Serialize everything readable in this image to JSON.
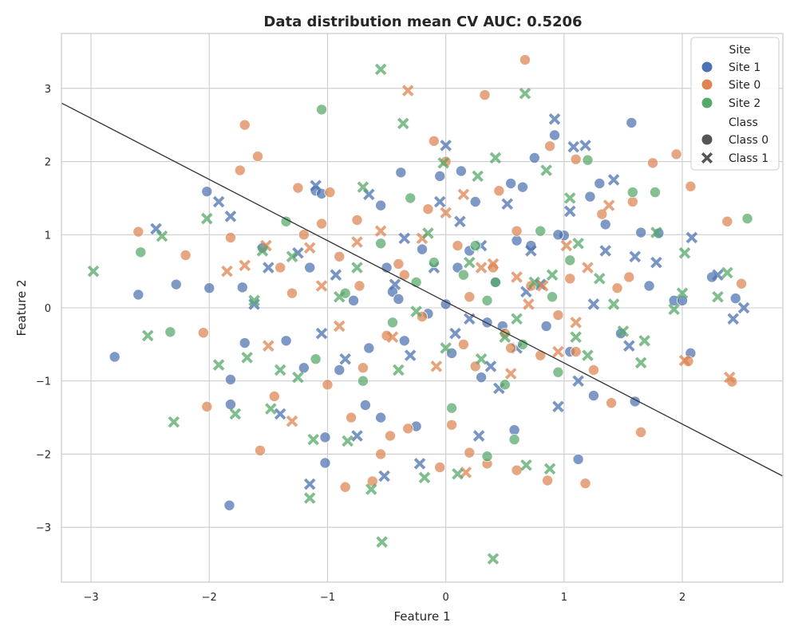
{
  "chart_data": {
    "type": "scatter",
    "title": "Data distribution mean CV AUC: 0.5206",
    "xlabel": "Feature 1",
    "ylabel": "Feature 2",
    "xlim": [
      -3.25,
      2.85
    ],
    "ylim": [
      -3.75,
      3.75
    ],
    "xticks": [
      -3,
      -2,
      -1,
      0,
      1,
      2
    ],
    "yticks": [
      -3,
      -2,
      -1,
      0,
      1,
      2,
      3
    ],
    "xtick_labels": [
      "−3",
      "−2",
      "−1",
      "0",
      "1",
      "2"
    ],
    "ytick_labels": [
      "−3",
      "−2",
      "−1",
      "0",
      "1",
      "2",
      "3"
    ],
    "grid": true,
    "legend_position": "top-right",
    "legend": {
      "hue_title": "Site",
      "style_title": "Class",
      "hue_entries": [
        "Site 1",
        "Site 0",
        "Site 2"
      ],
      "style_entries": [
        "Class 0",
        "Class 1"
      ]
    },
    "colors": {
      "Site 1": "#4c72b0",
      "Site 0": "#dd8452",
      "Site 2": "#55a868",
      "neutral": "#555555",
      "line": "#333333"
    },
    "decision_boundary": {
      "x": [
        -3.25,
        2.85
      ],
      "y": [
        2.8,
        -2.3
      ]
    },
    "series": [
      {
        "site": "Site 1",
        "class": "Class 0",
        "x": [
          -2.8,
          -2.6,
          -2.28,
          -2.02,
          -2.0,
          -1.82,
          -1.82,
          -1.83,
          -1.72,
          -1.1,
          -1.05,
          -1.02,
          -1.02,
          -0.38,
          -0.55,
          -0.05,
          -0.55,
          0.13,
          0.55,
          0.65,
          0.75,
          0.92,
          1.0,
          1.3,
          1.22,
          1.25,
          1.57,
          1.65,
          1.72,
          1.93,
          2.0,
          2.07,
          2.25,
          2.45,
          -1.15,
          -0.78,
          -0.5,
          -0.2,
          0.35,
          0.05,
          -0.35,
          0.42,
          0.2,
          -0.65,
          0.58,
          1.12,
          -1.7,
          -0.9,
          -0.15,
          0.6,
          1.35,
          0.85,
          -0.45,
          0.1,
          -1.35,
          0.95,
          1.48,
          0.3,
          -0.25,
          -0.68,
          0.72,
          1.05,
          1.8,
          -1.55,
          0.0,
          1.6,
          -0.4,
          -1.2,
          0.25,
          0.48
        ],
        "y": [
          -0.67,
          0.18,
          0.32,
          1.59,
          0.27,
          -0.98,
          -1.32,
          -2.7,
          0.28,
          1.6,
          1.56,
          -2.12,
          -1.77,
          1.85,
          1.4,
          1.8,
          -1.5,
          1.87,
          1.7,
          1.65,
          2.05,
          2.36,
          0.99,
          1.7,
          1.52,
          -1.2,
          2.53,
          1.03,
          0.3,
          0.1,
          0.1,
          -0.62,
          0.42,
          0.13,
          0.55,
          0.1,
          0.55,
          0.8,
          -0.2,
          -0.62,
          -0.45,
          0.35,
          0.78,
          -0.55,
          -1.67,
          -2.07,
          -0.48,
          -0.85,
          -0.08,
          0.92,
          1.14,
          -0.25,
          0.22,
          0.55,
          -0.45,
          1.0,
          -0.35,
          -0.95,
          -1.62,
          -1.33,
          0.85,
          -0.6,
          1.02,
          0.82,
          0.05,
          -1.28,
          0.12,
          -0.82,
          1.45,
          -0.25
        ]
      },
      {
        "site": "Site 1",
        "class": "Class 1",
        "x": [
          -2.45,
          -1.92,
          -1.82,
          -1.62,
          -1.4,
          -1.25,
          -1.1,
          -0.93,
          -0.75,
          -0.52,
          -0.43,
          -0.22,
          -0.0,
          0.08,
          0.28,
          0.52,
          0.72,
          0.92,
          1.08,
          1.18,
          1.25,
          1.42,
          1.6,
          1.78,
          2.08,
          2.3,
          2.43,
          2.52,
          -1.15,
          -0.3,
          0.2,
          0.6,
          1.05,
          1.35,
          -0.65,
          0.38,
          -0.1,
          0.8,
          -0.85,
          1.55,
          -1.5,
          0.12,
          0.45,
          -0.05,
          0.95,
          1.12,
          -0.35,
          0.68,
          -1.05,
          0.3
        ],
        "y": [
          1.08,
          1.45,
          1.25,
          0.05,
          -1.45,
          0.75,
          1.67,
          0.45,
          -1.75,
          -2.3,
          0.32,
          -2.13,
          2.22,
          -0.35,
          -1.75,
          1.42,
          0.78,
          2.58,
          2.2,
          2.22,
          0.05,
          1.75,
          0.7,
          0.62,
          0.96,
          0.45,
          -0.15,
          0.0,
          -2.41,
          -0.65,
          -0.15,
          -0.55,
          1.32,
          0.78,
          1.55,
          -0.8,
          0.55,
          0.32,
          -0.7,
          -0.52,
          0.55,
          1.18,
          -1.1,
          1.45,
          -1.35,
          -1.0,
          0.95,
          0.22,
          -0.35,
          0.85
        ]
      },
      {
        "site": "Site 0",
        "class": "Class 0",
        "x": [
          -2.6,
          -2.2,
          -2.05,
          -2.02,
          -1.82,
          -1.7,
          -1.74,
          -1.59,
          -1.57,
          -1.45,
          -1.4,
          -1.25,
          -1.2,
          -1.05,
          -0.98,
          -0.85,
          -0.8,
          -0.73,
          -0.62,
          -0.55,
          -0.47,
          -0.32,
          -0.1,
          -0.05,
          0.0,
          0.05,
          0.2,
          0.33,
          0.35,
          0.45,
          0.6,
          0.67,
          0.72,
          0.86,
          0.88,
          1.1,
          1.1,
          1.18,
          1.32,
          1.45,
          1.55,
          1.58,
          1.65,
          1.75,
          1.95,
          2.07,
          2.05,
          2.38,
          2.42,
          2.5,
          -1.0,
          -0.7,
          -0.35,
          0.15,
          0.5,
          0.95,
          1.25,
          -0.9,
          -0.2,
          0.4,
          0.8,
          -1.3,
          0.1,
          0.6,
          -0.5,
          1.05,
          -0.15,
          0.25,
          -0.75,
          1.4,
          0.55,
          -0.4,
          0.2
        ],
        "y": [
          1.04,
          0.72,
          -0.34,
          -1.35,
          0.96,
          2.5,
          1.88,
          2.07,
          -1.95,
          -1.21,
          0.55,
          1.64,
          1.0,
          1.15,
          1.58,
          -2.45,
          -1.5,
          0.3,
          -2.37,
          -2.0,
          -1.75,
          -1.65,
          2.28,
          -2.18,
          2.0,
          -1.6,
          -1.98,
          2.91,
          -2.13,
          1.6,
          -2.22,
          3.39,
          0.3,
          -2.36,
          2.21,
          2.03,
          -0.6,
          -2.4,
          1.28,
          0.27,
          0.42,
          1.45,
          -1.7,
          1.98,
          2.1,
          1.66,
          -0.73,
          1.18,
          -1.01,
          0.33,
          -1.05,
          -0.82,
          0.45,
          -0.5,
          -0.35,
          -0.1,
          -0.85,
          0.7,
          -0.12,
          0.55,
          -0.65,
          0.2,
          0.85,
          1.05,
          -0.38,
          0.4,
          1.35,
          -0.8,
          1.2,
          -1.3,
          -0.55,
          0.6,
          0.15
        ]
      },
      {
        "site": "Site 0",
        "class": "Class 1",
        "x": [
          -1.85,
          -1.52,
          -1.5,
          -1.3,
          -1.15,
          -0.9,
          -0.55,
          -0.32,
          -0.08,
          0.17,
          0.4,
          0.6,
          0.82,
          1.02,
          1.2,
          1.38,
          -0.75,
          -0.45,
          0.0,
          0.3,
          0.55,
          1.1,
          -1.05,
          0.7,
          -0.2,
          0.95,
          2.02,
          2.4,
          -1.7,
          0.15
        ],
        "y": [
          0.5,
          0.85,
          -0.52,
          -1.55,
          0.82,
          -0.25,
          1.05,
          2.97,
          -0.8,
          -2.25,
          0.6,
          0.42,
          0.3,
          0.85,
          0.55,
          1.4,
          0.9,
          -0.4,
          1.3,
          0.55,
          -0.9,
          -0.2,
          0.3,
          0.05,
          0.95,
          -0.6,
          -0.72,
          -0.95,
          0.58,
          1.55
        ]
      },
      {
        "site": "Site 2",
        "class": "Class 0",
        "x": [
          -2.58,
          -2.33,
          -1.35,
          -1.05,
          -0.7,
          -0.1,
          0.05,
          0.35,
          0.42,
          0.58,
          0.8,
          0.95,
          1.2,
          1.58,
          1.77,
          2.55,
          -0.55,
          0.25,
          -0.25,
          0.65,
          -0.85,
          1.05,
          -1.1,
          0.15,
          -0.45,
          0.5,
          0.9,
          -0.3,
          0.35
        ],
        "y": [
          0.76,
          -0.33,
          1.18,
          2.71,
          -1.0,
          0.62,
          -1.37,
          -2.03,
          0.35,
          -1.8,
          1.05,
          -0.88,
          2.02,
          1.58,
          1.58,
          1.22,
          0.88,
          0.85,
          0.35,
          -0.5,
          0.2,
          0.65,
          -0.7,
          0.45,
          -0.2,
          -1.05,
          0.15,
          1.5,
          0.1
        ]
      },
      {
        "site": "Site 2",
        "class": "Class 1",
        "x": [
          -2.98,
          -2.4,
          -2.52,
          -2.3,
          -2.02,
          -1.92,
          -1.78,
          -1.68,
          -1.62,
          -1.48,
          -1.4,
          -1.25,
          -1.15,
          -1.12,
          -0.83,
          -0.7,
          -0.63,
          -0.55,
          -0.54,
          -0.36,
          -0.18,
          -0.02,
          0.1,
          0.27,
          0.4,
          0.42,
          0.67,
          0.68,
          0.85,
          0.88,
          1.05,
          1.12,
          1.2,
          1.42,
          1.68,
          1.78,
          1.93,
          2.02,
          2.3,
          2.38,
          -0.9,
          -0.4,
          0.2,
          0.6,
          1.3,
          -1.3,
          0.0,
          0.75,
          -0.15,
          0.5,
          1.65,
          -0.75,
          0.3,
          1.5,
          2.0,
          -1.55,
          -0.25,
          0.9,
          1.1
        ],
        "y": [
          0.5,
          0.98,
          -0.38,
          -1.56,
          1.22,
          -0.78,
          -1.45,
          -0.68,
          0.1,
          -1.38,
          -0.85,
          -0.95,
          -2.6,
          -1.8,
          -1.82,
          1.65,
          -2.48,
          3.26,
          -3.2,
          2.52,
          -2.32,
          1.98,
          -2.27,
          1.8,
          -3.43,
          2.05,
          2.93,
          -2.15,
          1.88,
          -2.2,
          1.5,
          0.88,
          -0.65,
          0.05,
          -0.45,
          1.03,
          -0.02,
          0.75,
          0.15,
          0.48,
          0.15,
          -0.85,
          0.62,
          -0.15,
          0.4,
          0.7,
          -0.55,
          0.35,
          1.02,
          -0.4,
          -0.75,
          0.55,
          -0.7,
          -0.32,
          0.2,
          0.78,
          -0.05,
          0.45,
          -0.4
        ]
      }
    ]
  }
}
